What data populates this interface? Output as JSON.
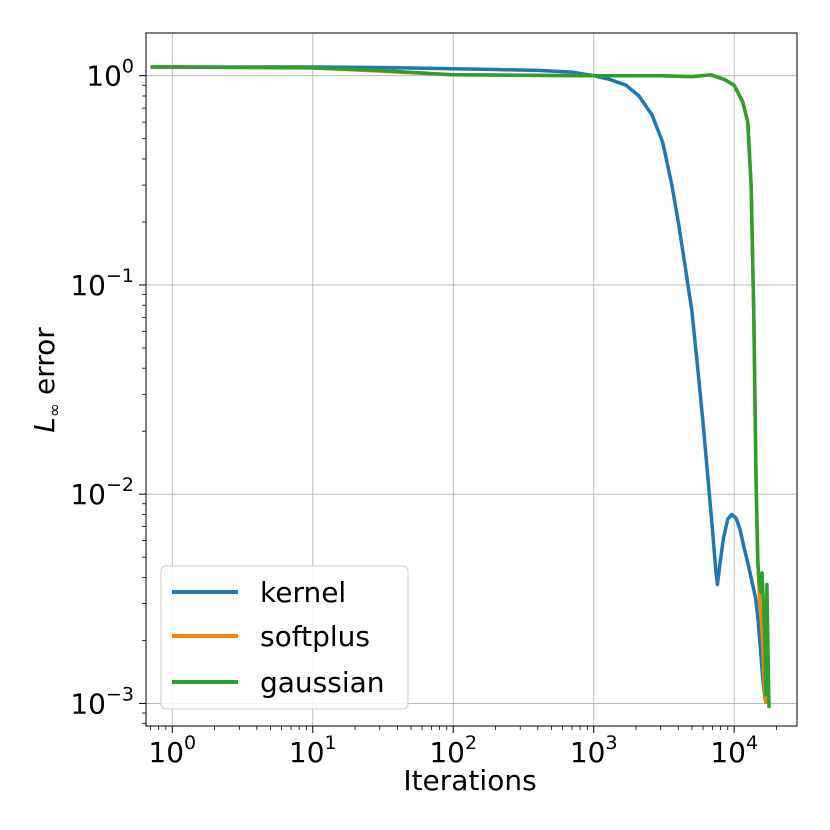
{
  "chart_data": {
    "type": "line",
    "xlabel": "Iterations",
    "ylabel": "error",
    "ylabel_symbol": "L",
    "ylabel_subscript": "∞",
    "x_scale": "log",
    "y_scale": "log",
    "xlim": [
      0.65,
      28000
    ],
    "ylim": [
      0.00078,
      1.6
    ],
    "x_ticks": [
      {
        "value": 1,
        "base": "10",
        "exp": "0"
      },
      {
        "value": 10,
        "base": "10",
        "exp": "1"
      },
      {
        "value": 100,
        "base": "10",
        "exp": "2"
      },
      {
        "value": 1000,
        "base": "10",
        "exp": "3"
      },
      {
        "value": 10000,
        "base": "10",
        "exp": "4"
      }
    ],
    "y_ticks": [
      {
        "value": 1,
        "base": "10",
        "exp": "0"
      },
      {
        "value": 0.1,
        "base": "10",
        "exp": "−1"
      },
      {
        "value": 0.01,
        "base": "10",
        "exp": "−2"
      },
      {
        "value": 0.001,
        "base": "10",
        "exp": "−3"
      }
    ],
    "grid": true,
    "legend_position": "bottom-left",
    "series": [
      {
        "name": "kernel",
        "color": "#1f77b4",
        "points": [
          [
            0.7,
            1.1
          ],
          [
            1,
            1.1
          ],
          [
            3,
            1.1
          ],
          [
            10,
            1.1
          ],
          [
            30,
            1.095
          ],
          [
            100,
            1.08
          ],
          [
            200,
            1.07
          ],
          [
            400,
            1.06
          ],
          [
            700,
            1.04
          ],
          [
            1000,
            1.0
          ],
          [
            1300,
            0.96
          ],
          [
            1700,
            0.9
          ],
          [
            2100,
            0.8
          ],
          [
            2600,
            0.65
          ],
          [
            3100,
            0.48
          ],
          [
            3600,
            0.3
          ],
          [
            4000,
            0.2
          ],
          [
            4500,
            0.12
          ],
          [
            5000,
            0.075
          ],
          [
            5500,
            0.04
          ],
          [
            6000,
            0.022
          ],
          [
            6500,
            0.012
          ],
          [
            7000,
            0.0068
          ],
          [
            7400,
            0.0043
          ],
          [
            7600,
            0.0037
          ],
          [
            7900,
            0.0046
          ],
          [
            8400,
            0.0062
          ],
          [
            9000,
            0.0076
          ],
          [
            9600,
            0.008
          ],
          [
            10300,
            0.0077
          ],
          [
            11000,
            0.0068
          ],
          [
            11800,
            0.0055
          ],
          [
            12600,
            0.0046
          ],
          [
            13400,
            0.0038
          ],
          [
            14200,
            0.0032
          ],
          [
            14800,
            0.0025
          ],
          [
            15400,
            0.0018
          ],
          [
            16000,
            0.0013
          ],
          [
            16600,
            0.00105
          ],
          [
            17200,
            0.001
          ]
        ]
      },
      {
        "name": "softplus",
        "color": "#ff7f0e",
        "points": [
          [
            0.7,
            1.1
          ],
          [
            1,
            1.1
          ],
          [
            10,
            1.09
          ],
          [
            100,
            1.01
          ],
          [
            1000,
            1.0
          ],
          [
            3000,
            1.0
          ],
          [
            5000,
            0.99
          ],
          [
            6800,
            1.01
          ],
          [
            8500,
            0.96
          ],
          [
            10000,
            0.9
          ],
          [
            11500,
            0.75
          ],
          [
            12500,
            0.6
          ],
          [
            13200,
            0.3
          ],
          [
            13800,
            0.07
          ],
          [
            14300,
            0.012
          ],
          [
            14800,
            0.0045
          ],
          [
            15200,
            0.003
          ],
          [
            15600,
            0.0025
          ],
          [
            16000,
            0.0019
          ],
          [
            16400,
            0.0012
          ],
          [
            16800,
            0.001
          ]
        ]
      },
      {
        "name": "gaussian",
        "color": "#2ca02c",
        "points": [
          [
            0.7,
            1.1
          ],
          [
            1,
            1.1
          ],
          [
            10,
            1.09
          ],
          [
            30,
            1.06
          ],
          [
            100,
            1.01
          ],
          [
            1000,
            1.0
          ],
          [
            3000,
            1.0
          ],
          [
            5000,
            0.99
          ],
          [
            6800,
            1.01
          ],
          [
            8500,
            0.96
          ],
          [
            10000,
            0.9
          ],
          [
            11500,
            0.75
          ],
          [
            12500,
            0.6
          ],
          [
            13200,
            0.3
          ],
          [
            13800,
            0.07
          ],
          [
            14300,
            0.012
          ],
          [
            14700,
            0.0048
          ],
          [
            15100,
            0.0038
          ],
          [
            15500,
            0.0034
          ],
          [
            15800,
            0.0042
          ],
          [
            16100,
            0.0031
          ],
          [
            16500,
            0.0022
          ],
          [
            16800,
            0.0011
          ],
          [
            17100,
            0.0037
          ],
          [
            17400,
            0.0018
          ],
          [
            17700,
            0.00095
          ]
        ]
      }
    ]
  }
}
